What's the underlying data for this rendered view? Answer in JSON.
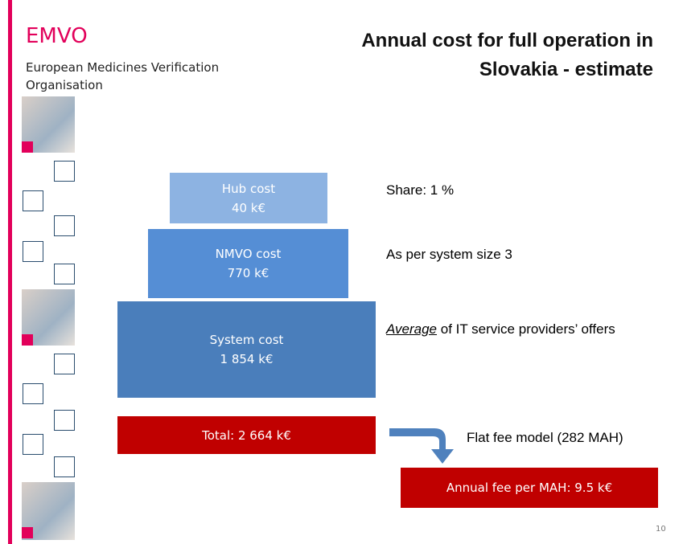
{
  "header": {
    "logo": "EMVO",
    "organisation": "European Medicines Verification Organisation",
    "title_line1": "Annual cost for full operation in",
    "title_line2": "Slovakia - estimate"
  },
  "pyramid": [
    {
      "label": "Hub cost",
      "amount": "40 k€"
    },
    {
      "label": "NMVO cost",
      "amount": "770 k€"
    },
    {
      "label": "System cost",
      "amount": "1 854 k€"
    }
  ],
  "total": "Total: 2 664 k€",
  "notes": [
    {
      "text": "Share: 1 %"
    },
    {
      "text": "As per system size 3"
    },
    {
      "emphasis": "Average",
      "rest": " of IT service providers’ offers"
    }
  ],
  "model": "Flat fee model (282 MAH)",
  "fee": "Annual fee per MAH: 9.5 k€",
  "page_number": "10"
}
